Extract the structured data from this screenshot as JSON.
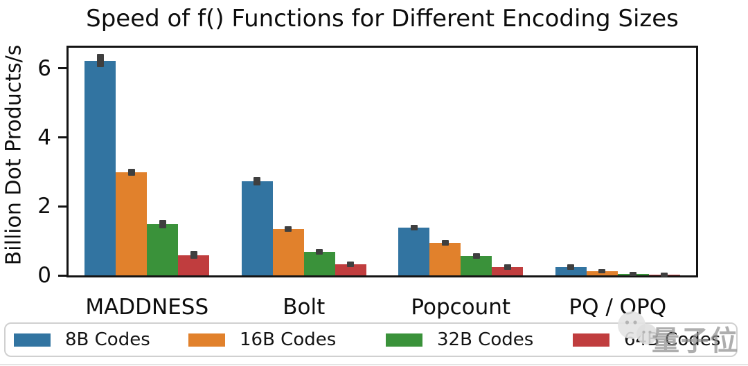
{
  "chart_data": {
    "type": "bar",
    "title": "Speed of f() Functions for Different Encoding Sizes",
    "ylabel": "Billion Dot Products/s",
    "xlabel": "",
    "categories": [
      "MADDNESS",
      "Bolt",
      "Popcount",
      "PQ / OPQ"
    ],
    "series": [
      {
        "name": "8B Codes",
        "color": "#3274A1",
        "values": [
          6.22,
          2.72,
          1.39,
          0.25
        ],
        "errors": [
          0.19,
          0.12,
          0.08,
          0.08
        ]
      },
      {
        "name": "16B Codes",
        "color": "#E1812C",
        "values": [
          2.98,
          1.35,
          0.94,
          0.13
        ],
        "errors": [
          0.1,
          0.08,
          0.08,
          0.06
        ]
      },
      {
        "name": "32B Codes",
        "color": "#3A923A",
        "values": [
          1.48,
          0.68,
          0.57,
          0.05
        ],
        "errors": [
          0.12,
          0.08,
          0.08,
          0.05
        ]
      },
      {
        "name": "64B Codes",
        "color": "#C03D3E",
        "values": [
          0.59,
          0.32,
          0.25,
          0.02
        ],
        "errors": [
          0.11,
          0.08,
          0.08,
          0.04
        ]
      }
    ],
    "yticks": [
      0,
      2,
      4,
      6
    ],
    "ylim": [
      0,
      6.6
    ],
    "grid": false,
    "legend_position": "bottom",
    "error_bar_color": "#3F3F3F"
  },
  "watermark": {
    "text": "量子位",
    "icon": "qbitai-logo"
  }
}
